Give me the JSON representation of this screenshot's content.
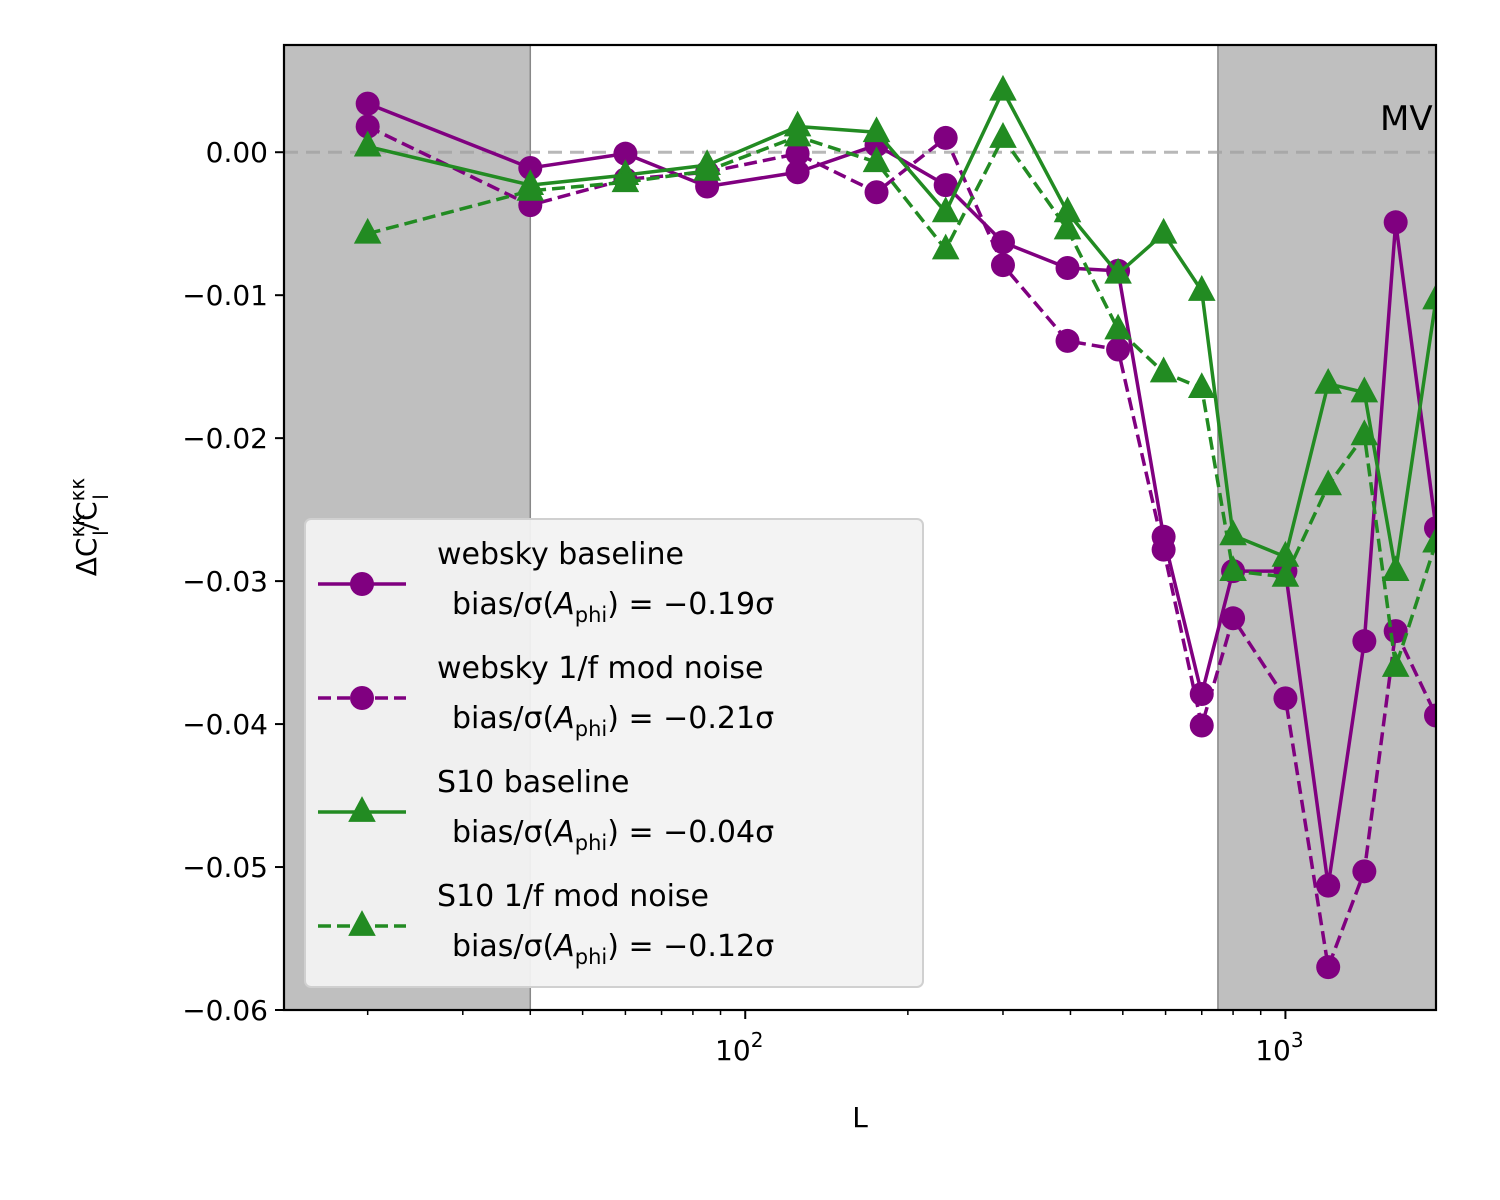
{
  "chart_data": {
    "type": "line",
    "panel_label": "MV",
    "xlabel": "L",
    "ylabel": "ΔC_l^κκ/C_l^κκ",
    "xscale": "log",
    "xlim": [
      14,
      1900
    ],
    "ylim": [
      -0.06,
      0.0075
    ],
    "x_ticks": [
      {
        "value": 100,
        "base": "10",
        "exp": "2"
      },
      {
        "value": 1000,
        "base": "10",
        "exp": "3"
      }
    ],
    "y_ticks": [
      {
        "value": 0.0,
        "label": "0.00"
      },
      {
        "value": -0.01,
        "label": "−0.01"
      },
      {
        "value": -0.02,
        "label": "−0.02"
      },
      {
        "value": -0.03,
        "label": "−0.03"
      },
      {
        "value": -0.04,
        "label": "−0.04"
      },
      {
        "value": -0.05,
        "label": "−0.05"
      },
      {
        "value": -0.06,
        "label": "−0.06"
      }
    ],
    "shaded_regions": [
      [
        14,
        40
      ],
      [
        750,
        1900
      ]
    ],
    "reference_line": 0.0,
    "x": [
      20,
      40,
      60,
      85,
      125,
      175,
      235,
      300,
      395,
      490,
      595,
      700,
      800,
      1000,
      1200,
      1400,
      1600,
      1900
    ],
    "legend_loc": "lower left",
    "series": [
      {
        "name": "websky baseline",
        "bias": "−0.19σ",
        "color": "#800080",
        "linestyle": "solid",
        "marker": "circle",
        "values": [
          0.0034,
          -0.0011,
          -0.0001,
          -0.0024,
          -0.0014,
          0.0005,
          -0.0023,
          -0.0063,
          -0.0081,
          -0.0083,
          -0.0269,
          -0.0379,
          -0.0293,
          -0.0293,
          -0.0513,
          -0.0342,
          -0.0049,
          -0.0263
        ]
      },
      {
        "name": "websky 1/f mod noise",
        "bias": "−0.21σ",
        "color": "#800080",
        "linestyle": "dashed",
        "marker": "circle",
        "values": [
          0.0018,
          -0.0037,
          -0.0019,
          -0.0014,
          -0.0001,
          -0.0028,
          0.001,
          -0.0079,
          -0.0132,
          -0.0138,
          -0.0278,
          -0.0401,
          -0.0326,
          -0.0382,
          -0.057,
          -0.0503,
          -0.0335,
          -0.0394
        ]
      },
      {
        "name": "S10 baseline",
        "bias": "−0.04σ",
        "color": "#228B22",
        "linestyle": "solid",
        "marker": "triangle",
        "values": [
          0.0004,
          -0.0023,
          -0.0016,
          -0.0009,
          0.0018,
          0.0014,
          -0.0042,
          0.0043,
          -0.0042,
          -0.0085,
          -0.0057,
          -0.0097,
          -0.0268,
          -0.0283,
          -0.0162,
          -0.0168,
          -0.0293,
          -0.0103
        ]
      },
      {
        "name": "S10 1/f mod noise",
        "bias": "−0.12σ",
        "color": "#228B22",
        "linestyle": "dashed",
        "marker": "triangle",
        "values": [
          -0.0057,
          -0.0027,
          -0.0021,
          -0.0013,
          0.0011,
          -0.0007,
          -0.0068,
          0.001,
          -0.0054,
          -0.0124,
          -0.0154,
          -0.0165,
          -0.0293,
          -0.0297,
          -0.0233,
          -0.0198,
          -0.036,
          -0.0273
        ]
      }
    ]
  }
}
